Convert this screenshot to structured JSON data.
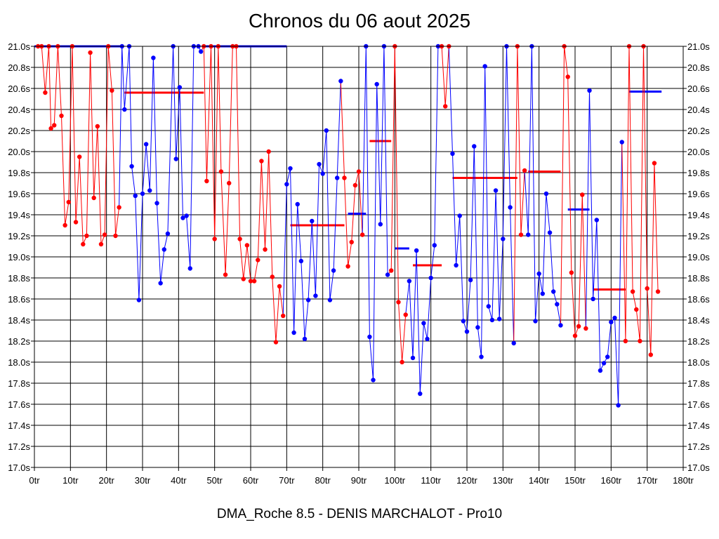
{
  "chart_data": {
    "type": "line",
    "title": "Chronos du 06 aout 2025",
    "subtitle": "DMA_Roche 8.5 - DENIS MARCHALOT - Pro10",
    "x_ticks": [
      "0tr",
      "10tr",
      "20tr",
      "30tr",
      "40tr",
      "50tr",
      "60tr",
      "70tr",
      "80tr",
      "90tr",
      "100tr",
      "110tr",
      "120tr",
      "130tr",
      "140tr",
      "150tr",
      "160tr",
      "170tr",
      "180tr"
    ],
    "y_ticks": [
      "17.0s",
      "17.2s",
      "17.4s",
      "17.6s",
      "17.8s",
      "18.0s",
      "18.2s",
      "18.4s",
      "18.6s",
      "18.8s",
      "19.0s",
      "19.2s",
      "19.4s",
      "19.6s",
      "19.8s",
      "20.0s",
      "20.2s",
      "20.4s",
      "20.6s",
      "20.8s",
      "21.0s"
    ],
    "xlim": [
      0,
      180
    ],
    "ylim": [
      17.0,
      21.0
    ],
    "grid": true,
    "colors": {
      "red": "#ff0000",
      "blue": "#0000ff"
    },
    "series": [
      {
        "color": "red",
        "points": [
          [
            1,
            21.0
          ],
          [
            2,
            21.0
          ],
          [
            3,
            20.56
          ],
          [
            4,
            21.0
          ],
          [
            4.6,
            20.22
          ],
          [
            5.5,
            20.25
          ],
          [
            6.5,
            21.0
          ],
          [
            7.5,
            20.34
          ],
          [
            8.5,
            19.3
          ],
          [
            9.5,
            19.52
          ],
          [
            10.5,
            21.0
          ],
          [
            11.5,
            19.33
          ],
          [
            12.5,
            19.95
          ],
          [
            13.5,
            19.12
          ],
          [
            14.5,
            19.2
          ],
          [
            15.5,
            20.94
          ],
          [
            16.5,
            19.56
          ],
          [
            17.5,
            20.24
          ],
          [
            18.5,
            19.12
          ],
          [
            19.5,
            19.21
          ],
          [
            20.5,
            21.0
          ],
          [
            21.5,
            20.58
          ],
          [
            22.5,
            19.2
          ],
          [
            23.5,
            19.47
          ]
        ]
      },
      {
        "color": "blue",
        "points": [
          [
            24.3,
            21.0
          ],
          [
            25,
            20.4
          ],
          [
            26.3,
            21.0
          ],
          [
            27,
            19.86
          ],
          [
            28,
            19.58
          ],
          [
            29,
            18.59
          ],
          [
            30,
            19.6
          ],
          [
            31,
            20.07
          ],
          [
            32,
            19.63
          ],
          [
            33,
            20.89
          ],
          [
            34,
            19.51
          ],
          [
            35,
            18.75
          ],
          [
            36,
            19.07
          ],
          [
            37,
            19.22
          ],
          [
            38.5,
            21.0
          ],
          [
            39.3,
            19.93
          ],
          [
            40.3,
            20.61
          ],
          [
            41.2,
            19.37
          ],
          [
            42.2,
            19.39
          ],
          [
            43.2,
            18.89
          ],
          [
            44.2,
            21.0
          ],
          [
            45.5,
            21.0
          ],
          [
            46.2,
            20.95
          ]
        ]
      },
      {
        "color": "red",
        "points": [
          [
            47,
            21.0
          ],
          [
            47.8,
            19.72
          ],
          [
            49,
            21.0
          ],
          [
            50,
            19.17
          ],
          [
            51,
            21.0
          ],
          [
            51.8,
            19.81
          ],
          [
            53,
            18.83
          ],
          [
            54,
            19.7
          ],
          [
            55,
            21.0
          ],
          [
            56,
            21.0
          ],
          [
            57,
            19.17
          ],
          [
            58,
            18.79
          ],
          [
            59,
            19.11
          ],
          [
            60,
            18.77
          ],
          [
            61,
            18.77
          ],
          [
            62,
            18.97
          ],
          [
            63,
            19.91
          ],
          [
            64,
            19.07
          ],
          [
            65,
            20.0
          ],
          [
            66,
            18.81
          ],
          [
            67,
            18.19
          ],
          [
            68,
            18.72
          ],
          [
            69,
            18.44
          ]
        ]
      },
      {
        "color": "blue",
        "points": [
          [
            70,
            19.69
          ],
          [
            71,
            19.84
          ],
          [
            72,
            18.28
          ],
          [
            73,
            19.5
          ],
          [
            74,
            18.96
          ],
          [
            75,
            18.22
          ],
          [
            76,
            18.59
          ],
          [
            77,
            19.34
          ],
          [
            78,
            18.63
          ],
          [
            79,
            19.88
          ],
          [
            80,
            19.79
          ],
          [
            81,
            20.2
          ],
          [
            82,
            18.59
          ],
          [
            83,
            18.87
          ],
          [
            84,
            19.75
          ],
          [
            85,
            20.67
          ]
        ]
      },
      {
        "color": "red",
        "points": [
          [
            86,
            19.75
          ],
          [
            87,
            18.91
          ],
          [
            88,
            19.14
          ],
          [
            89,
            19.68
          ],
          [
            90,
            19.81
          ],
          [
            91,
            19.21
          ]
        ]
      },
      {
        "color": "blue",
        "points": [
          [
            92,
            21.0
          ],
          [
            93,
            18.24
          ],
          [
            94,
            17.83
          ],
          [
            95,
            20.64
          ],
          [
            96,
            19.31
          ],
          [
            97,
            21.0
          ],
          [
            98,
            18.83
          ]
        ]
      },
      {
        "color": "red",
        "points": [
          [
            99,
            18.87
          ],
          [
            100,
            21.0
          ],
          [
            101,
            18.57
          ],
          [
            102,
            18.0
          ],
          [
            103,
            18.45
          ]
        ]
      },
      {
        "color": "blue",
        "points": [
          [
            104,
            18.77
          ],
          [
            105,
            18.04
          ],
          [
            106,
            19.06
          ],
          [
            107,
            17.7
          ],
          [
            108,
            18.37
          ],
          [
            109,
            18.22
          ],
          [
            110,
            18.8
          ],
          [
            111,
            19.11
          ],
          [
            112,
            21.0
          ]
        ]
      },
      {
        "color": "red",
        "points": [
          [
            113,
            21.0
          ],
          [
            114,
            20.43
          ],
          [
            115,
            21.0
          ]
        ]
      },
      {
        "color": "blue",
        "points": [
          [
            116,
            19.98
          ],
          [
            117,
            18.92
          ],
          [
            118,
            19.39
          ],
          [
            119,
            18.39
          ],
          [
            120,
            18.29
          ],
          [
            121,
            18.78
          ],
          [
            122,
            20.05
          ],
          [
            123,
            18.33
          ],
          [
            124,
            18.05
          ],
          [
            125,
            20.81
          ],
          [
            126,
            18.53
          ],
          [
            127,
            18.4
          ],
          [
            128,
            19.63
          ],
          [
            129,
            18.41
          ],
          [
            130,
            19.17
          ],
          [
            131,
            21.0
          ],
          [
            132,
            19.47
          ],
          [
            133,
            18.18
          ]
        ]
      },
      {
        "color": "red",
        "points": [
          [
            134,
            21.0
          ],
          [
            135,
            19.21
          ],
          [
            136,
            19.82
          ]
        ]
      },
      {
        "color": "blue",
        "points": [
          [
            137,
            19.21
          ],
          [
            138,
            21.0
          ],
          [
            139,
            18.39
          ],
          [
            140,
            18.84
          ],
          [
            141,
            18.65
          ],
          [
            142,
            19.6
          ],
          [
            143,
            19.23
          ],
          [
            144,
            18.67
          ],
          [
            145,
            18.55
          ],
          [
            146,
            18.35
          ]
        ]
      },
      {
        "color": "red",
        "points": [
          [
            147,
            21.0
          ],
          [
            148,
            20.71
          ],
          [
            149,
            18.85
          ],
          [
            150,
            18.25
          ],
          [
            151,
            18.34
          ],
          [
            152,
            19.59
          ],
          [
            153,
            18.32
          ]
        ]
      },
      {
        "color": "blue",
        "points": [
          [
            154,
            20.58
          ],
          [
            155,
            18.6
          ],
          [
            156,
            19.35
          ],
          [
            157,
            17.92
          ],
          [
            158,
            17.99
          ],
          [
            159,
            18.05
          ],
          [
            160,
            18.38
          ],
          [
            161,
            18.42
          ],
          [
            162,
            17.59
          ],
          [
            163,
            20.09
          ]
        ]
      },
      {
        "color": "red",
        "points": [
          [
            164,
            18.2
          ],
          [
            165,
            21.0
          ],
          [
            166,
            18.67
          ],
          [
            167,
            18.5
          ],
          [
            168,
            18.2
          ],
          [
            169,
            21.0
          ],
          [
            170,
            18.7
          ],
          [
            171,
            18.07
          ],
          [
            172,
            19.89
          ],
          [
            173,
            18.67
          ]
        ]
      }
    ],
    "averages": [
      {
        "color": "blue",
        "x0": 0,
        "x1": 24,
        "y": 21.0
      },
      {
        "color": "red",
        "x0": 25,
        "x1": 47,
        "y": 20.56
      },
      {
        "color": "blue",
        "x0": 47,
        "x1": 70,
        "y": 21.0
      },
      {
        "color": "red",
        "x0": 71,
        "x1": 86,
        "y": 19.3
      },
      {
        "color": "blue",
        "x0": 87,
        "x1": 92,
        "y": 19.41
      },
      {
        "color": "red",
        "x0": 93,
        "x1": 99,
        "y": 20.1
      },
      {
        "color": "blue",
        "x0": 100,
        "x1": 104,
        "y": 19.08
      },
      {
        "color": "red",
        "x0": 105,
        "x1": 113,
        "y": 18.92
      },
      {
        "color": "red",
        "x0": 116,
        "x1": 134,
        "y": 19.75
      },
      {
        "color": "red",
        "x0": 137,
        "x1": 146,
        "y": 19.81
      },
      {
        "color": "blue",
        "x0": 148,
        "x1": 154,
        "y": 19.45
      },
      {
        "color": "red",
        "x0": 155,
        "x1": 164,
        "y": 18.69
      },
      {
        "color": "blue",
        "x0": 165,
        "x1": 174,
        "y": 20.57
      }
    ]
  }
}
